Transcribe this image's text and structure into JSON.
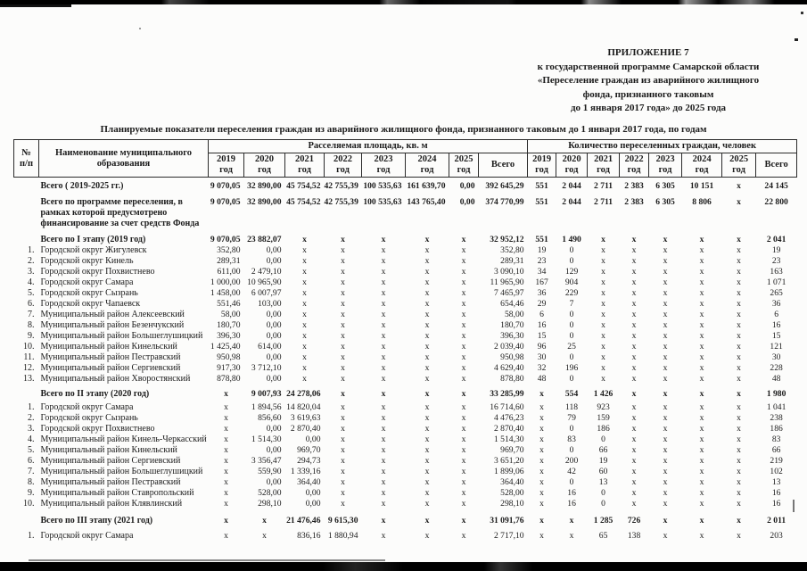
{
  "page": {
    "appendix_lines": [
      "ПРИЛОЖЕНИЕ 7",
      "к государственной программе Самарской области",
      "«Переселение граждан из аварийного жилищного",
      "фонда, признанного таковым",
      "до 1 января 2017 года» до 2025 года"
    ],
    "title": "Планируемые показатели переселения граждан из аварийного жилищного фонда, признанного таковым до 1 января 2017 года, по годам",
    "colors": {
      "ink": "#1b1b1b",
      "paper": "#fcfcfb"
    }
  },
  "table": {
    "num_line1": "№",
    "num_line2": "п/п",
    "name_header": "Наименование муниципального образования",
    "group_area": "Расселяемая площадь, кв. м",
    "group_count": "Количество переселенных граждан, человек",
    "years": [
      "2019",
      "2020",
      "2021",
      "2022",
      "2023",
      "2024",
      "2025"
    ],
    "year_suffix": "год",
    "total_header": "Всего",
    "rows": [
      {
        "num": "",
        "name": "Всего ( 2019-2025 гг.)",
        "bold": true,
        "gap": 4,
        "cells": [
          "9 070,05",
          "32 890,00",
          "45 754,52",
          "42 755,39",
          "100 535,63",
          "161 639,70",
          "0,00",
          "392 645,29",
          "551",
          "2 044",
          "2 711",
          "2 383",
          "6 305",
          "10 151",
          "x",
          "24 145"
        ]
      },
      {
        "num": "",
        "name": "Всего по программе переселения, в рамках которой предусмотрено финансирование  за счет средств Фонда",
        "bold": true,
        "gap": 6,
        "cells": [
          "9 070,05",
          "32 890,00",
          "45 754,52",
          "42 755,39",
          "100 535,63",
          "143 765,40",
          "0,00",
          "374 770,99",
          "551",
          "2 044",
          "2 711",
          "2 383",
          "6 305",
          "8 806",
          "x",
          "22 800"
        ]
      },
      {
        "num": "",
        "name": "Всего по I этапу (2019 год)",
        "bold": true,
        "gap": 6,
        "cells": [
          "9 070,05",
          "23 882,07",
          "x",
          "x",
          "x",
          "x",
          "x",
          "32 952,12",
          "551",
          "1 490",
          "x",
          "x",
          "x",
          "x",
          "x",
          "2 041"
        ]
      },
      {
        "num": "1.",
        "name": "Городской округ Жигулевск",
        "bold": false,
        "gap": 0,
        "cells": [
          "352,80",
          "0,00",
          "x",
          "x",
          "x",
          "x",
          "x",
          "352,80",
          "19",
          "0",
          "x",
          "x",
          "x",
          "x",
          "x",
          "19"
        ]
      },
      {
        "num": "2.",
        "name": "Городской округ Кинель",
        "bold": false,
        "gap": 0,
        "cells": [
          "289,31",
          "0,00",
          "x",
          "x",
          "x",
          "x",
          "x",
          "289,31",
          "23",
          "0",
          "x",
          "x",
          "x",
          "x",
          "x",
          "23"
        ]
      },
      {
        "num": "3.",
        "name": "Городской округ Похвистнево",
        "bold": false,
        "gap": 0,
        "cells": [
          "611,00",
          "2 479,10",
          "x",
          "x",
          "x",
          "x",
          "x",
          "3 090,10",
          "34",
          "129",
          "x",
          "x",
          "x",
          "x",
          "x",
          "163"
        ]
      },
      {
        "num": "4.",
        "name": "Городской округ Самара",
        "bold": false,
        "gap": 0,
        "cells": [
          "1 000,00",
          "10 965,90",
          "x",
          "x",
          "x",
          "x",
          "x",
          "11 965,90",
          "167",
          "904",
          "x",
          "x",
          "x",
          "x",
          "x",
          "1 071"
        ]
      },
      {
        "num": "5.",
        "name": "Городской округ Сызрань",
        "bold": false,
        "gap": 0,
        "cells": [
          "1 458,00",
          "6 007,97",
          "x",
          "x",
          "x",
          "x",
          "x",
          "7 465,97",
          "36",
          "229",
          "x",
          "x",
          "x",
          "x",
          "x",
          "265"
        ]
      },
      {
        "num": "6.",
        "name": "Городской округ Чапаевск",
        "bold": false,
        "gap": 0,
        "cells": [
          "551,46",
          "103,00",
          "x",
          "x",
          "x",
          "x",
          "x",
          "654,46",
          "29",
          "7",
          "x",
          "x",
          "x",
          "x",
          "x",
          "36"
        ]
      },
      {
        "num": "7.",
        "name": "Муниципальный район Алексеевский",
        "bold": false,
        "gap": 0,
        "cells": [
          "58,00",
          "0,00",
          "x",
          "x",
          "x",
          "x",
          "x",
          "58,00",
          "6",
          "0",
          "x",
          "x",
          "x",
          "x",
          "x",
          "6"
        ]
      },
      {
        "num": "8.",
        "name": "Муниципальный район Безенчукский",
        "bold": false,
        "gap": 0,
        "cells": [
          "180,70",
          "0,00",
          "x",
          "x",
          "x",
          "x",
          "x",
          "180,70",
          "16",
          "0",
          "x",
          "x",
          "x",
          "x",
          "x",
          "16"
        ]
      },
      {
        "num": "9.",
        "name": "Муниципальный район Большеглушицкий",
        "bold": false,
        "gap": 0,
        "cells": [
          "396,30",
          "0,00",
          "x",
          "x",
          "x",
          "x",
          "x",
          "396,30",
          "15",
          "0",
          "x",
          "x",
          "x",
          "x",
          "x",
          "15"
        ]
      },
      {
        "num": "10.",
        "name": "Муниципальный район Кинельский",
        "bold": false,
        "gap": 0,
        "cells": [
          "1 425,40",
          "614,00",
          "x",
          "x",
          "x",
          "x",
          "x",
          "2 039,40",
          "96",
          "25",
          "x",
          "x",
          "x",
          "x",
          "x",
          "121"
        ]
      },
      {
        "num": "11.",
        "name": "Муниципальный район Пестравский",
        "bold": false,
        "gap": 0,
        "cells": [
          "950,98",
          "0,00",
          "x",
          "x",
          "x",
          "x",
          "x",
          "950,98",
          "30",
          "0",
          "x",
          "x",
          "x",
          "x",
          "x",
          "30"
        ]
      },
      {
        "num": "12.",
        "name": "Муниципальный район Сергиевский",
        "bold": false,
        "gap": 0,
        "cells": [
          "917,30",
          "3 712,10",
          "x",
          "x",
          "x",
          "x",
          "x",
          "4 629,40",
          "32",
          "196",
          "x",
          "x",
          "x",
          "x",
          "x",
          "228"
        ]
      },
      {
        "num": "13.",
        "name": "Муниципальный район Хворостянский",
        "bold": false,
        "gap": 0,
        "cells": [
          "878,80",
          "0,00",
          "x",
          "x",
          "x",
          "x",
          "x",
          "878,80",
          "48",
          "0",
          "x",
          "x",
          "x",
          "x",
          "x",
          "48"
        ]
      },
      {
        "num": "",
        "name": "Всего по II этапу (2020 год)",
        "bold": true,
        "gap": 5,
        "cells": [
          "x",
          "9 007,93",
          "24 278,06",
          "x",
          "x",
          "x",
          "x",
          "33 285,99",
          "x",
          "554",
          "1 426",
          "x",
          "x",
          "x",
          "x",
          "1 980"
        ]
      },
      {
        "num": "1.",
        "name": "Городской округ Самара",
        "bold": false,
        "gap": 3,
        "cells": [
          "x",
          "1 894,56",
          "14 820,04",
          "x",
          "x",
          "x",
          "x",
          "16 714,60",
          "x",
          "118",
          "923",
          "x",
          "x",
          "x",
          "x",
          "1 041"
        ]
      },
      {
        "num": "2.",
        "name": "Городской округ Сызрань",
        "bold": false,
        "gap": 0,
        "cells": [
          "x",
          "856,60",
          "3 619,63",
          "x",
          "x",
          "x",
          "x",
          "4 476,23",
          "x",
          "79",
          "159",
          "x",
          "x",
          "x",
          "x",
          "238"
        ]
      },
      {
        "num": "3.",
        "name": "Городской округ Похвистнево",
        "bold": false,
        "gap": 0,
        "cells": [
          "x",
          "0,00",
          "2 870,40",
          "x",
          "x",
          "x",
          "x",
          "2 870,40",
          "x",
          "0",
          "186",
          "x",
          "x",
          "x",
          "x",
          "186"
        ]
      },
      {
        "num": "4.",
        "name": "Муниципальный район Кинель-Черкасский",
        "bold": false,
        "gap": 0,
        "cells": [
          "x",
          "1 514,30",
          "0,00",
          "x",
          "x",
          "x",
          "x",
          "1 514,30",
          "x",
          "83",
          "0",
          "x",
          "x",
          "x",
          "x",
          "83"
        ]
      },
      {
        "num": "5.",
        "name": "Муниципальный район Кинельский",
        "bold": false,
        "gap": 0,
        "cells": [
          "x",
          "0,00",
          "969,70",
          "x",
          "x",
          "x",
          "x",
          "969,70",
          "x",
          "0",
          "66",
          "x",
          "x",
          "x",
          "x",
          "66"
        ]
      },
      {
        "num": "6.",
        "name": "Муниципальный район Сергиевский",
        "bold": false,
        "gap": 0,
        "cells": [
          "x",
          "3 356,47",
          "294,73",
          "x",
          "x",
          "x",
          "x",
          "3 651,20",
          "x",
          "200",
          "19",
          "x",
          "x",
          "x",
          "x",
          "219"
        ]
      },
      {
        "num": "7.",
        "name": "Муниципальный район Большеглушицкий",
        "bold": false,
        "gap": 0,
        "cells": [
          "x",
          "559,90",
          "1 339,16",
          "x",
          "x",
          "x",
          "x",
          "1 899,06",
          "x",
          "42",
          "60",
          "x",
          "x",
          "x",
          "x",
          "102"
        ]
      },
      {
        "num": "8.",
        "name": "Муниципальный район Пестравский",
        "bold": false,
        "gap": 0,
        "cells": [
          "x",
          "0,00",
          "364,40",
          "x",
          "x",
          "x",
          "x",
          "364,40",
          "x",
          "0",
          "13",
          "x",
          "x",
          "x",
          "x",
          "13"
        ]
      },
      {
        "num": "9.",
        "name": "Муниципальный район  Ставропольский",
        "bold": false,
        "gap": 0,
        "cells": [
          "x",
          "528,00",
          "0,00",
          "x",
          "x",
          "x",
          "x",
          "528,00",
          "x",
          "16",
          "0",
          "x",
          "x",
          "x",
          "x",
          "16"
        ]
      },
      {
        "num": "10.",
        "name": "Муниципальный район Клявлинский",
        "bold": false,
        "gap": 0,
        "cells": [
          "x",
          "298,10",
          "0,00",
          "x",
          "x",
          "x",
          "x",
          "298,10",
          "x",
          "16",
          "0",
          "x",
          "x",
          "x",
          "x",
          "16"
        ]
      },
      {
        "num": "",
        "name": "Всего по III этапу (2021 год)",
        "bold": true,
        "gap": 7,
        "cells": [
          "x",
          "x",
          "21 476,46",
          "9 615,30",
          "x",
          "x",
          "x",
          "31 091,76",
          "x",
          "x",
          "1 285",
          "726",
          "x",
          "x",
          "x",
          "2 011"
        ]
      },
      {
        "num": "1.",
        "name": "Городской округ Самара",
        "bold": false,
        "gap": 5,
        "cells": [
          "x",
          "x",
          "836,16",
          "1 880,94",
          "x",
          "x",
          "x",
          "2 717,10",
          "x",
          "x",
          "65",
          "138",
          "x",
          "x",
          "x",
          "203"
        ]
      }
    ]
  }
}
